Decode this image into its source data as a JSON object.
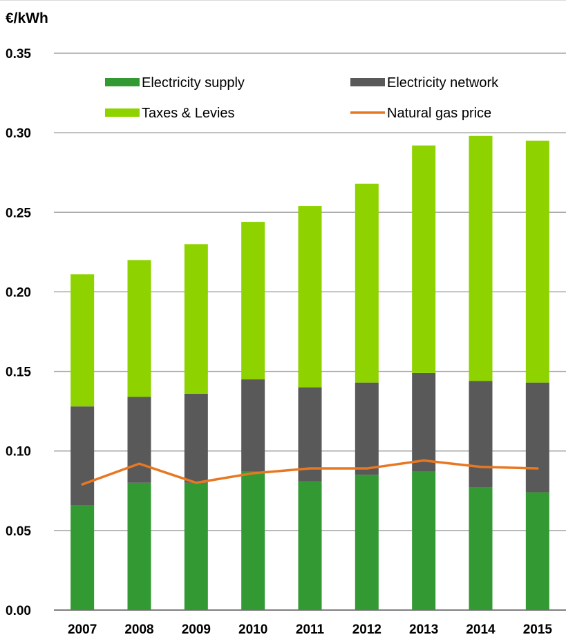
{
  "chart_data": {
    "type": "bar",
    "stacked": true,
    "unit_label": "€/kWh",
    "categories": [
      "2007",
      "2008",
      "2009",
      "2010",
      "2011",
      "2012",
      "2013",
      "2014",
      "2015"
    ],
    "series": [
      {
        "name": "Electricity supply",
        "type": "bar",
        "color": "#339933",
        "values": [
          0.066,
          0.08,
          0.08,
          0.087,
          0.081,
          0.085,
          0.087,
          0.077,
          0.074
        ]
      },
      {
        "name": "Electricity network",
        "type": "bar",
        "color": "#595959",
        "values": [
          0.062,
          0.054,
          0.056,
          0.058,
          0.059,
          0.058,
          0.062,
          0.067,
          0.069
        ]
      },
      {
        "name": "Taxes & Levies",
        "type": "bar",
        "color": "#8ED300",
        "values": [
          0.083,
          0.086,
          0.094,
          0.099,
          0.114,
          0.125,
          0.143,
          0.154,
          0.152
        ]
      },
      {
        "name": "Natural gas price",
        "type": "line",
        "color": "#E87722",
        "values": [
          0.079,
          0.092,
          0.08,
          0.086,
          0.089,
          0.089,
          0.094,
          0.09,
          0.089
        ]
      }
    ],
    "yticks": [
      "0.00",
      "0.05",
      "0.10",
      "0.15",
      "0.20",
      "0.25",
      "0.30",
      "0.35"
    ],
    "ylim": [
      0,
      0.35
    ],
    "grid": true,
    "legend_position": "top"
  }
}
